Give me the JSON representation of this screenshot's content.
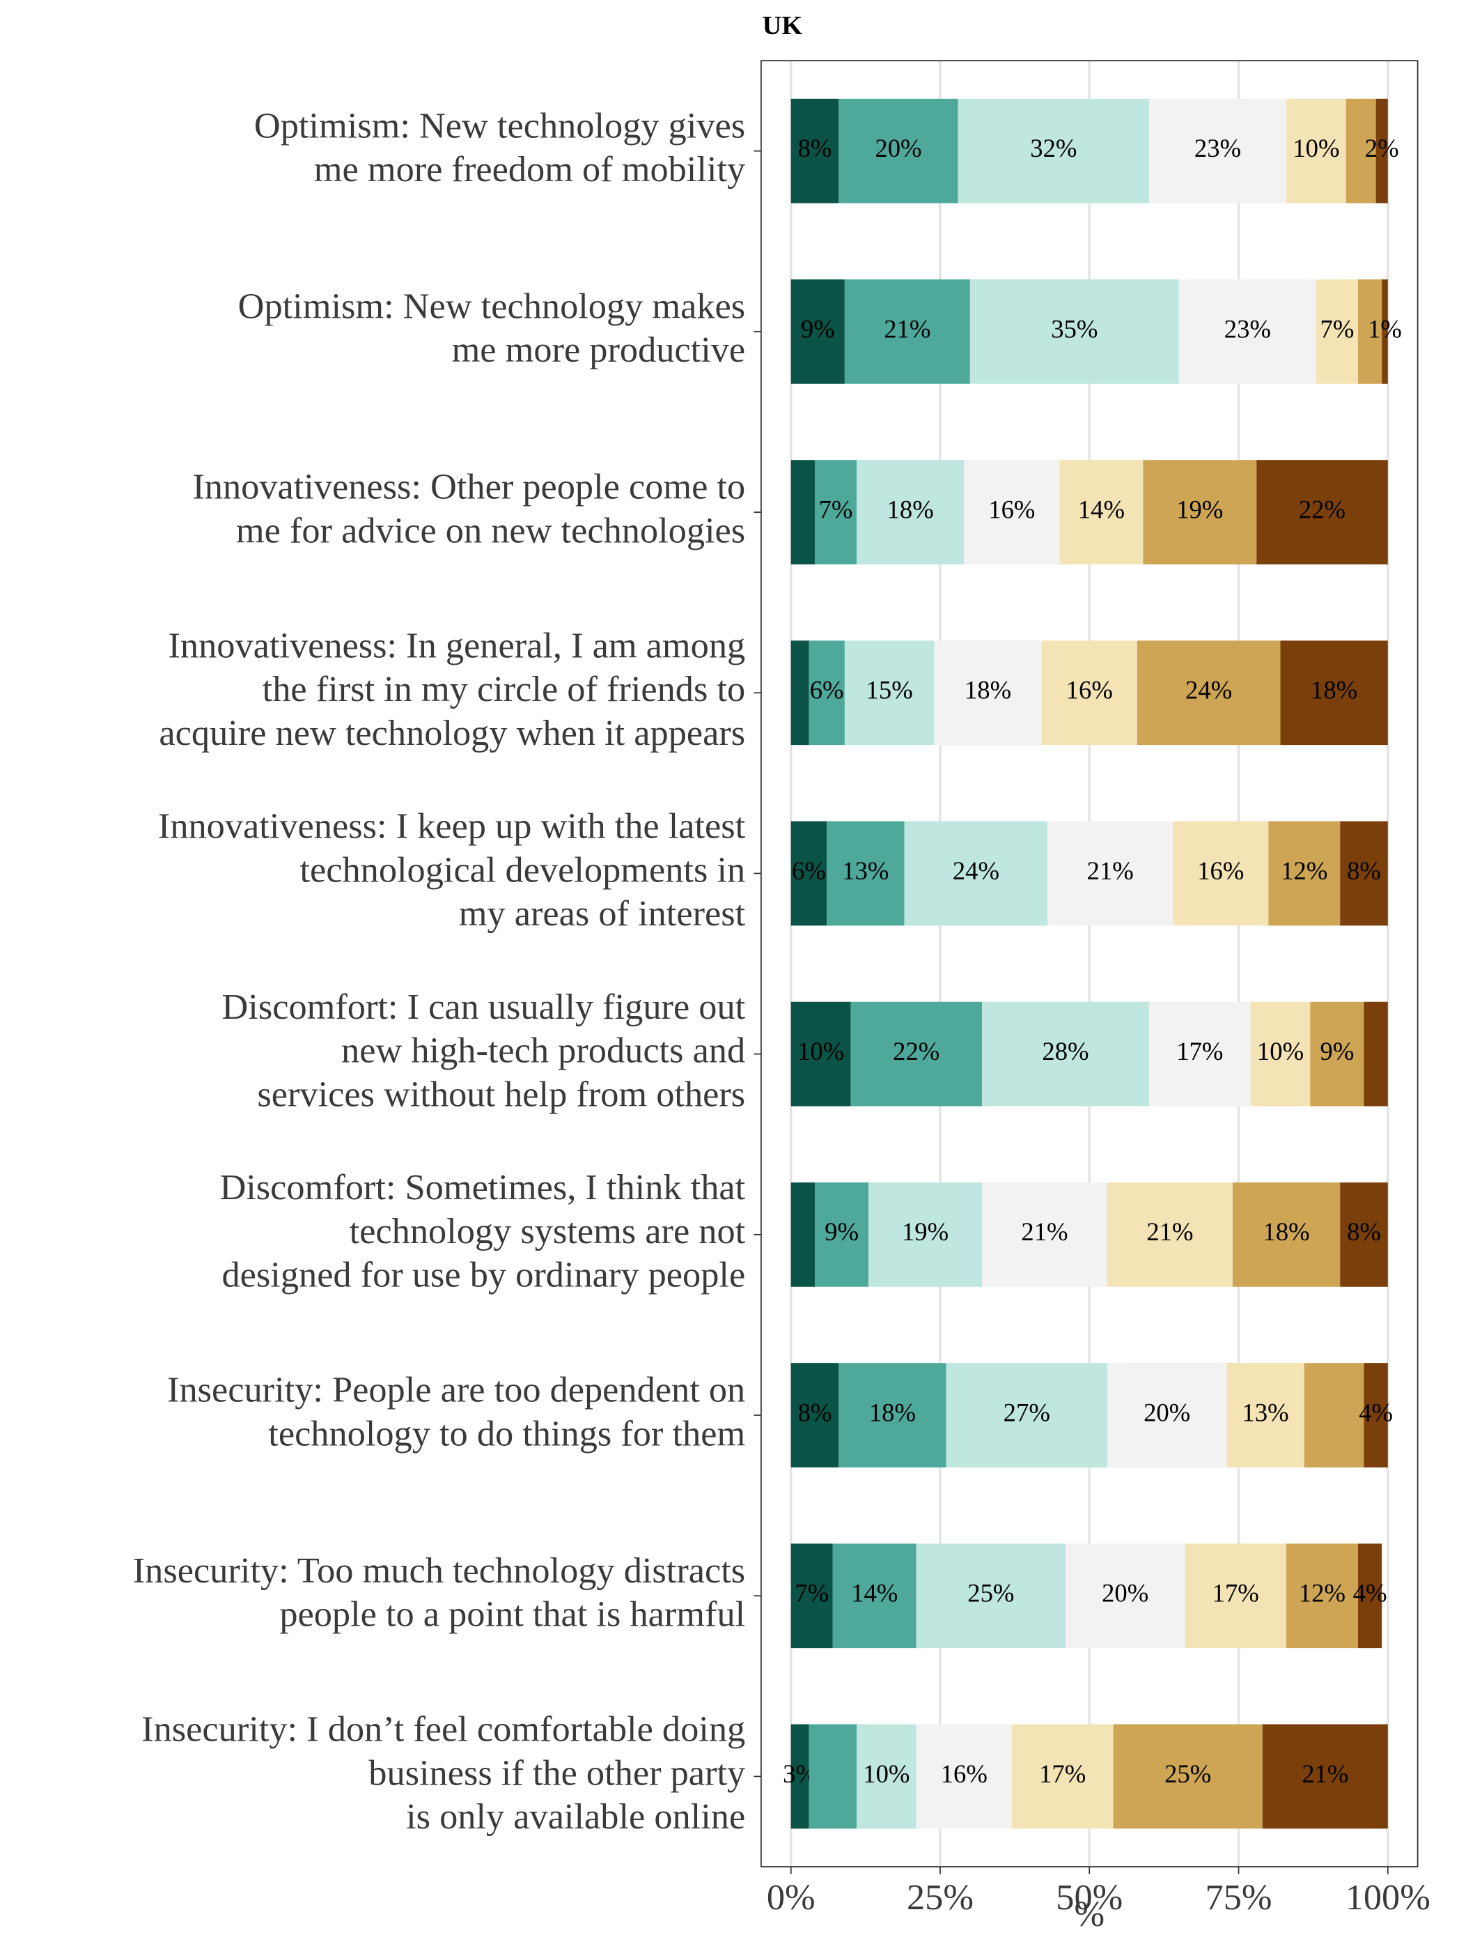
{
  "chart_data": {
    "type": "stacked_barh",
    "title": "UK",
    "categories": [
      "Optimism: New technology gives\nme more freedom of mobility",
      "Optimism: New technology makes\nme more productive",
      "Innovativeness: Other people come to\nme for advice on new technologies",
      "Innovativeness: In general, I am among\nthe first in my circle of friends to\nacquire new technology when it appears",
      "Innovativeness: I keep up with the latest\ntechnological developments in\nmy areas of interest",
      "Discomfort: I can usually figure out\nnew high-tech products and\nservices without help from others",
      "Discomfort: Sometimes, I think that\ntechnology systems are not\ndesigned for use by ordinary people",
      "Insecurity: People are too dependent on\ntechnology to do things for them",
      "Insecurity: Too much technology distracts\npeople to a point that is harmful",
      "Insecurity: I don’t feel comfortable doing\nbusiness if the other party\nis only available online"
    ],
    "series": [
      {
        "color": "#0b5247",
        "values": [
          8,
          9,
          4,
          3,
          6,
          10,
          4,
          8,
          7,
          3
        ],
        "value_labels": [
          "8%",
          "9%",
          null,
          null,
          "6%",
          "10%",
          null,
          "8%",
          "7%",
          "3%"
        ]
      },
      {
        "color": "#4ea99b",
        "values": [
          20,
          21,
          7,
          6,
          13,
          22,
          9,
          18,
          14,
          8
        ],
        "value_labels": [
          "20%",
          "21%",
          "7%",
          "6%",
          "13%",
          "22%",
          "9%",
          "18%",
          "14%",
          null
        ]
      },
      {
        "color": "#bfe6df",
        "values": [
          32,
          35,
          18,
          15,
          24,
          28,
          19,
          27,
          25,
          10
        ],
        "value_labels": [
          "32%",
          "35%",
          "18%",
          "15%",
          "24%",
          "28%",
          "19%",
          "27%",
          "25%",
          "10%"
        ]
      },
      {
        "color": "#f2f2f2",
        "values": [
          23,
          23,
          16,
          18,
          21,
          17,
          21,
          20,
          20,
          16
        ],
        "value_labels": [
          "23%",
          "23%",
          "16%",
          "18%",
          "21%",
          "17%",
          "21%",
          "20%",
          "20%",
          "16%"
        ]
      },
      {
        "color": "#f4e3b5",
        "values": [
          10,
          7,
          14,
          16,
          16,
          10,
          21,
          13,
          17,
          17
        ],
        "value_labels": [
          "10%",
          "7%",
          "14%",
          "16%",
          "16%",
          "10%",
          "21%",
          "13%",
          "17%",
          "17%"
        ]
      },
      {
        "color": "#cda554",
        "values": [
          5,
          4,
          19,
          24,
          12,
          9,
          18,
          10,
          12,
          25
        ],
        "value_labels": [
          null,
          null,
          "19%",
          "24%",
          "12%",
          "9%",
          "18%",
          null,
          "12%",
          "25%"
        ]
      },
      {
        "color": "#7a3f0a",
        "values": [
          2,
          1,
          22,
          18,
          8,
          4,
          8,
          4,
          4,
          21
        ],
        "value_labels": [
          "2%",
          "1%",
          "22%",
          "18%",
          "8%",
          null,
          "8%",
          "4%",
          "4%",
          "21%"
        ]
      }
    ],
    "xlim": [
      -5,
      105
    ],
    "xticks": [
      {
        "value": 0,
        "label": "0%"
      },
      {
        "value": 25,
        "label": "25%"
      },
      {
        "value": 50,
        "label": "50%"
      },
      {
        "value": 75,
        "label": "75%"
      },
      {
        "value": 100,
        "label": "100%"
      }
    ],
    "xlabel": "%",
    "grid": true
  }
}
